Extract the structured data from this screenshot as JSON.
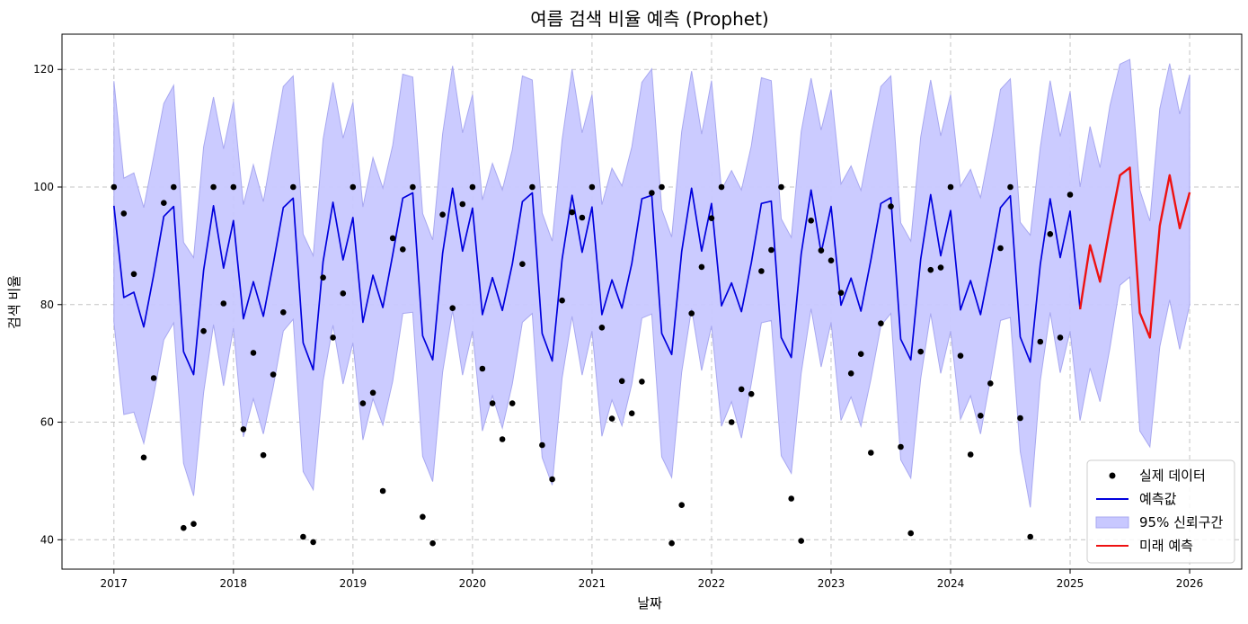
{
  "chart_data": {
    "type": "line",
    "title": "여름 검색 비율 예측 (Prophet)",
    "xlabel": "날짜",
    "ylabel": "검색 비율",
    "xlim": [
      "2016-07-26",
      "2026-06-09"
    ],
    "ylim": [
      35,
      126
    ],
    "x_ticks": [
      "2017",
      "2018",
      "2019",
      "2020",
      "2021",
      "2022",
      "2023",
      "2024",
      "2025",
      "2026"
    ],
    "y_ticks": [
      40,
      60,
      80,
      100,
      120
    ],
    "grid": true,
    "legend_position": "bottom-right",
    "legend": [
      {
        "label": "실제 데이터",
        "kind": "marker",
        "color": "#000000"
      },
      {
        "label": "예측값",
        "kind": "line",
        "color": "#0000dd"
      },
      {
        "label": "95% 신뢰구간",
        "kind": "band",
        "color": "#c8c8ff"
      },
      {
        "label": "미래 예측",
        "kind": "line",
        "color": "#ee1111"
      }
    ],
    "series": [
      {
        "name": "실제 데이터",
        "kind": "scatter",
        "color": "#000000",
        "x": [
          2017.0,
          2017.083,
          2017.167,
          2017.25,
          2017.333,
          2017.417,
          2017.5,
          2017.583,
          2017.667,
          2017.75,
          2017.833,
          2017.917,
          2018.0,
          2018.083,
          2018.167,
          2018.25,
          2018.333,
          2018.417,
          2018.5,
          2018.583,
          2018.667,
          2018.75,
          2018.833,
          2018.917,
          2019.0,
          2019.083,
          2019.167,
          2019.25,
          2019.333,
          2019.417,
          2019.5,
          2019.583,
          2019.667,
          2019.75,
          2019.833,
          2019.917,
          2020.0,
          2020.083,
          2020.167,
          2020.25,
          2020.333,
          2020.417,
          2020.5,
          2020.583,
          2020.667,
          2020.75,
          2020.833,
          2020.917,
          2021.0,
          2021.083,
          2021.167,
          2021.25,
          2021.333,
          2021.417,
          2021.5,
          2021.583,
          2021.667,
          2021.75,
          2021.833,
          2021.917,
          2022.0,
          2022.083,
          2022.167,
          2022.25,
          2022.333,
          2022.417,
          2022.5,
          2022.583,
          2022.667,
          2022.75,
          2022.833,
          2022.917,
          2023.0,
          2023.083,
          2023.167,
          2023.25,
          2023.333,
          2023.417,
          2023.5,
          2023.583,
          2023.667,
          2023.75,
          2023.833,
          2023.917,
          2024.0,
          2024.083,
          2024.167,
          2024.25,
          2024.333,
          2024.417,
          2024.5,
          2024.583,
          2024.667,
          2024.75,
          2024.833,
          2024.917,
          2025.0
        ],
        "y": [
          100,
          95.5,
          85.2,
          54,
          67.5,
          97.3,
          100,
          42,
          42.7,
          75.5,
          100,
          80.2,
          100,
          58.8,
          71.8,
          54.4,
          68.1,
          78.7,
          100,
          40.5,
          39.6,
          84.6,
          74.4,
          81.9,
          100,
          63.2,
          65,
          48.3,
          91.3,
          89.4,
          100,
          43.9,
          39.4,
          95.3,
          79.4,
          97.1,
          100,
          69.1,
          63.2,
          57.1,
          63.2,
          86.9,
          100,
          56.1,
          50.3,
          80.7,
          95.7,
          94.8,
          100,
          76.1,
          60.6,
          67,
          61.5,
          66.9,
          99,
          100,
          39.4,
          45.9,
          78.5,
          86.4,
          94.7,
          100,
          60,
          65.6,
          64.8,
          85.7,
          89.3,
          100,
          47,
          39.8,
          94.3,
          89.2,
          87.5,
          82,
          68.3,
          71.6,
          54.8,
          76.8,
          96.7,
          55.8,
          41.1,
          72,
          85.9,
          86.3,
          100,
          71.3,
          54.5,
          61.1,
          66.6,
          89.6,
          100,
          60.7,
          40.5,
          73.7,
          92,
          74.4,
          98.7
        ]
      },
      {
        "name": "예측값",
        "kind": "line",
        "color": "#0000dd",
        "x": [
          2017.0,
          2017.083,
          2017.167,
          2017.25,
          2017.333,
          2017.417,
          2017.5,
          2017.583,
          2017.667,
          2017.75,
          2017.833,
          2017.917,
          2018.0,
          2018.083,
          2018.167,
          2018.25,
          2018.333,
          2018.417,
          2018.5,
          2018.583,
          2018.667,
          2018.75,
          2018.833,
          2018.917,
          2019.0,
          2019.083,
          2019.167,
          2019.25,
          2019.333,
          2019.417,
          2019.5,
          2019.583,
          2019.667,
          2019.75,
          2019.833,
          2019.917,
          2020.0,
          2020.083,
          2020.167,
          2020.25,
          2020.333,
          2020.417,
          2020.5,
          2020.583,
          2020.667,
          2020.75,
          2020.833,
          2020.917,
          2021.0,
          2021.083,
          2021.167,
          2021.25,
          2021.333,
          2021.417,
          2021.5,
          2021.583,
          2021.667,
          2021.75,
          2021.833,
          2021.917,
          2022.0,
          2022.083,
          2022.167,
          2022.25,
          2022.333,
          2022.417,
          2022.5,
          2022.583,
          2022.667,
          2022.75,
          2022.833,
          2022.917,
          2023.0,
          2023.083,
          2023.167,
          2023.25,
          2023.333,
          2023.417,
          2023.5,
          2023.583,
          2023.667,
          2023.75,
          2023.833,
          2023.917,
          2024.0,
          2024.083,
          2024.167,
          2024.25,
          2024.333,
          2024.417,
          2024.5,
          2024.583,
          2024.667,
          2024.75,
          2024.833,
          2024.917,
          2025.0,
          2025.083
        ],
        "y": [
          96.8,
          81.2,
          82.1,
          76.2,
          85.1,
          95,
          96.7,
          72,
          68.1,
          85.8,
          96.8,
          86.2,
          94.3,
          77.6,
          83.9,
          78,
          86.9,
          96.5,
          98.1,
          73.5,
          68.9,
          87.3,
          97.4,
          87.6,
          94.8,
          77,
          85,
          79.5,
          88.5,
          98.1,
          99,
          74.7,
          70.6,
          88.7,
          99.8,
          89.1,
          96.4,
          78.3,
          84.6,
          79,
          86.9,
          97.5,
          99,
          75.1,
          70.4,
          87.7,
          98.6,
          88.9,
          96.6,
          78.3,
          84.2,
          79.4,
          87,
          98,
          98.6,
          75.1,
          71.5,
          89,
          99.8,
          89.1,
          97.2,
          79.8,
          83.7,
          78.8,
          87.1,
          97.2,
          97.6,
          74.4,
          71,
          88.6,
          99.5,
          88.8,
          96.7,
          79.9,
          84.5,
          78.9,
          87.6,
          97.2,
          98.2,
          74.1,
          70.6,
          87.7,
          98.7,
          88.3,
          96,
          79.1,
          84.1,
          78.3,
          86.8,
          96.5,
          98.5,
          74.5,
          70.2,
          86.8,
          98,
          88,
          95.9,
          79.2
        ]
      },
      {
        "name": "95% 신뢰구간",
        "kind": "band",
        "color": "#c8c8ff",
        "x": [
          2017.0,
          2017.083,
          2017.167,
          2017.25,
          2017.333,
          2017.417,
          2017.5,
          2017.583,
          2017.667,
          2017.75,
          2017.833,
          2017.917,
          2018.0,
          2018.083,
          2018.167,
          2018.25,
          2018.333,
          2018.417,
          2018.5,
          2018.583,
          2018.667,
          2018.75,
          2018.833,
          2018.917,
          2019.0,
          2019.083,
          2019.167,
          2019.25,
          2019.333,
          2019.417,
          2019.5,
          2019.583,
          2019.667,
          2019.75,
          2019.833,
          2019.917,
          2020.0,
          2020.083,
          2020.167,
          2020.25,
          2020.333,
          2020.417,
          2020.5,
          2020.583,
          2020.667,
          2020.75,
          2020.833,
          2020.917,
          2021.0,
          2021.083,
          2021.167,
          2021.25,
          2021.333,
          2021.417,
          2021.5,
          2021.583,
          2021.667,
          2021.75,
          2021.833,
          2021.917,
          2022.0,
          2022.083,
          2022.167,
          2022.25,
          2022.333,
          2022.417,
          2022.5,
          2022.583,
          2022.667,
          2022.75,
          2022.833,
          2022.917,
          2023.0,
          2023.083,
          2023.167,
          2023.25,
          2023.333,
          2023.417,
          2023.5,
          2023.583,
          2023.667,
          2023.75,
          2023.833,
          2023.917,
          2024.0,
          2024.083,
          2024.167,
          2024.25,
          2024.333,
          2024.417,
          2024.5,
          2024.583,
          2024.667,
          2024.75,
          2024.833,
          2024.917,
          2025.0,
          2025.083,
          2025.167,
          2025.25,
          2025.333,
          2025.417,
          2025.5,
          2025.583,
          2025.667,
          2025.75,
          2025.833,
          2025.917,
          2026.0
        ],
        "lower": [
          77,
          61.3,
          61.7,
          56.4,
          64.6,
          74,
          76.9,
          53,
          47.5,
          65,
          76.6,
          66.2,
          76,
          57.5,
          64,
          58,
          66,
          75.5,
          77.5,
          51.6,
          48.5,
          67,
          76.5,
          66.5,
          73.5,
          57,
          64,
          59.5,
          67,
          78.5,
          78.7,
          54.2,
          49.9,
          68.5,
          79,
          68,
          75.5,
          58.5,
          64.5,
          59,
          66.5,
          77,
          78.5,
          54,
          49.3,
          67.5,
          78,
          68,
          75.5,
          57.6,
          63.8,
          59.4,
          66.5,
          77.7,
          78.4,
          54.1,
          50.6,
          68.5,
          79.3,
          68.8,
          76.4,
          59.3,
          63.5,
          57.3,
          66.6,
          76.9,
          77.3,
          54.3,
          51.3,
          68.3,
          79.3,
          69.4,
          77,
          60.3,
          64.3,
          59.3,
          67.3,
          76.4,
          78.5,
          53.6,
          50.5,
          67.4,
          78.5,
          68.3,
          75.5,
          60.5,
          64.5,
          58,
          67.3,
          77.3,
          77.8,
          55,
          45.5,
          67,
          78.7,
          68.4,
          75.5,
          60.3,
          69.2,
          63.5,
          72.6,
          83.3,
          84.7,
          58.5,
          55.8,
          72.8,
          80.8,
          72.4,
          80
        ],
        "upper": [
          118,
          101.5,
          102.4,
          96.5,
          105.2,
          114.2,
          117.3,
          90.6,
          88,
          106.8,
          115.3,
          106.5,
          114.5,
          97,
          103.8,
          97.5,
          107.2,
          117.1,
          118.9,
          92,
          88.3,
          108.1,
          117.8,
          108.3,
          114.4,
          96.6,
          105,
          99.8,
          107.1,
          119.2,
          118.7,
          95.5,
          91,
          109,
          120.6,
          109.2,
          115.7,
          97.8,
          104,
          99.5,
          106.3,
          118.9,
          118.2,
          95.6,
          90.8,
          108,
          120,
          109.2,
          115.7,
          97,
          103.2,
          100.2,
          106.8,
          117.8,
          120.1,
          96.2,
          91.5,
          109.4,
          119.7,
          109,
          118.1,
          99.5,
          102.8,
          99.5,
          107,
          118.6,
          118.1,
          94.6,
          91.4,
          109.4,
          118.5,
          109.7,
          116.6,
          100.5,
          103.6,
          99.4,
          108.5,
          117.1,
          118.9,
          93.9,
          90.8,
          108.5,
          118.2,
          108.7,
          115.7,
          100.1,
          103,
          98.2,
          106.9,
          116.6,
          118.4,
          94,
          91.8,
          106.7,
          118.1,
          108.6,
          116.2,
          100,
          110.3,
          103.3,
          113.8,
          120.9,
          121.7,
          99.5,
          94.2,
          113.3,
          121,
          112.4,
          119.1
        ]
      },
      {
        "name": "미래 예측",
        "kind": "line",
        "color": "#ee1111",
        "x": [
          2025.083,
          2025.167,
          2025.25,
          2025.333,
          2025.417,
          2025.5,
          2025.583,
          2025.667,
          2025.75,
          2025.833,
          2025.917,
          2026.0
        ],
        "y": [
          79.2,
          90.1,
          83.9,
          93.2,
          102,
          103.3,
          78.6,
          74.4,
          93.4,
          102,
          93,
          99.1
        ]
      }
    ]
  }
}
